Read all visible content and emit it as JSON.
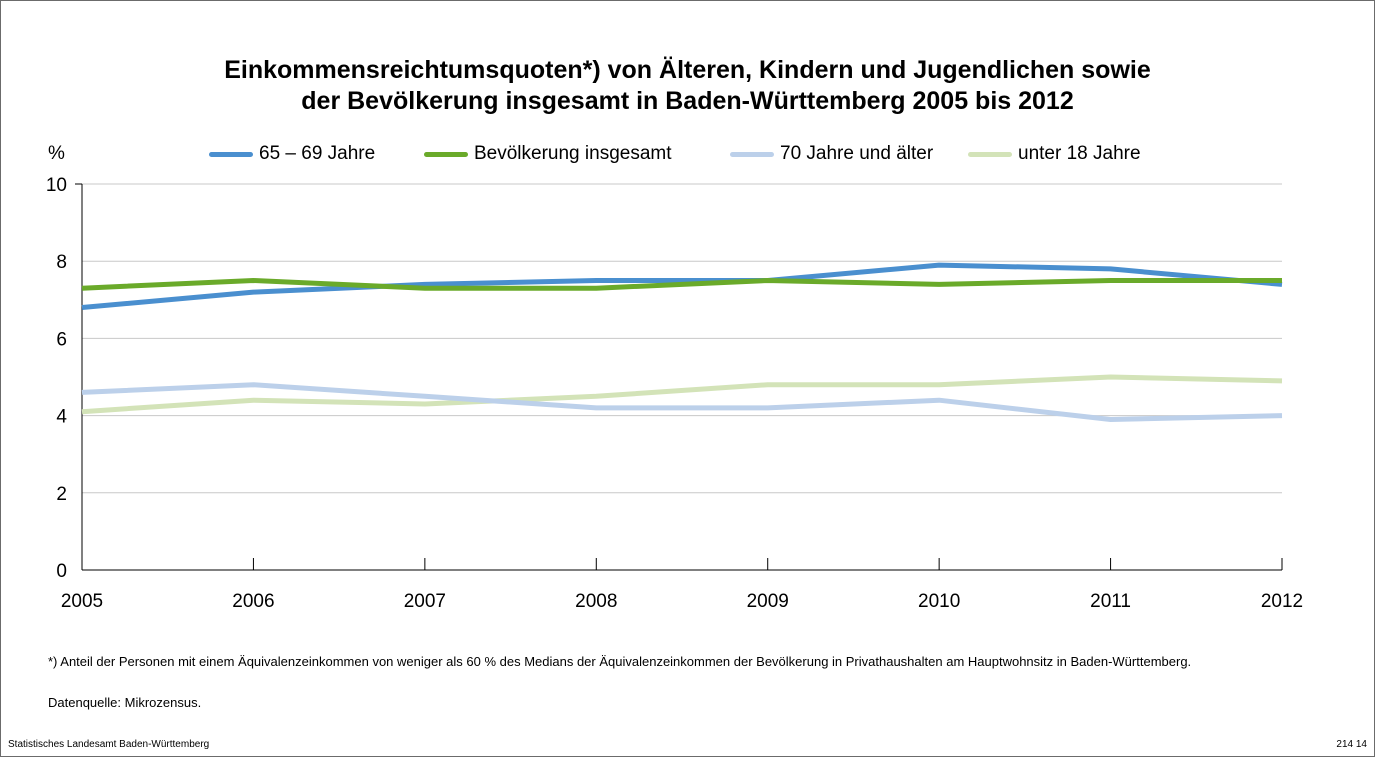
{
  "title_line1": "Einkommensreichtumsquoten*) von Älteren, Kindern und Jugendlichen sowie",
  "title_line2": "der Bevölkerung insgesamt in Baden-Württemberg 2005 bis 2012",
  "footnote": "*) Anteil der Personen mit einem Äquivalenzeinkommen von weniger als 60 % des Medians der Äquivalenzeinkommen der Bevölkerung in Privathaushalten am Hauptwohnsitz in Baden-Württemberg.",
  "source": "Datenquelle: Mikrozensus.",
  "footer_left": "Statistisches Landesamt Baden-Württemberg",
  "footer_right": "214 14",
  "chart_data": {
    "type": "line",
    "ylabel": "%",
    "ylim": [
      0,
      10
    ],
    "yticks": [
      "0",
      "2",
      "4",
      "6",
      "8",
      "10"
    ],
    "grid": true,
    "legend_position": "top",
    "categories": [
      "2005",
      "2006",
      "2007",
      "2008",
      "2009",
      "2010",
      "2011",
      "2012"
    ],
    "series": [
      {
        "name": "65 – 69 Jahre",
        "color": "#4a8fcf",
        "values": [
          6.8,
          7.2,
          7.4,
          7.5,
          7.5,
          7.9,
          7.8,
          7.4
        ]
      },
      {
        "name": "Bevölkerung insgesamt",
        "color": "#6aaa2a",
        "values": [
          7.3,
          7.5,
          7.3,
          7.3,
          7.5,
          7.4,
          7.5,
          7.5
        ]
      },
      {
        "name": "70 Jahre und älter",
        "color": "#bcd0ea",
        "values": [
          4.6,
          4.8,
          4.5,
          4.2,
          4.2,
          4.4,
          3.9,
          4.0
        ]
      },
      {
        "name": "unter 18 Jahre",
        "color": "#d3e3b8",
        "values": [
          4.1,
          4.4,
          4.3,
          4.5,
          4.8,
          4.8,
          5.0,
          4.9
        ]
      }
    ]
  }
}
